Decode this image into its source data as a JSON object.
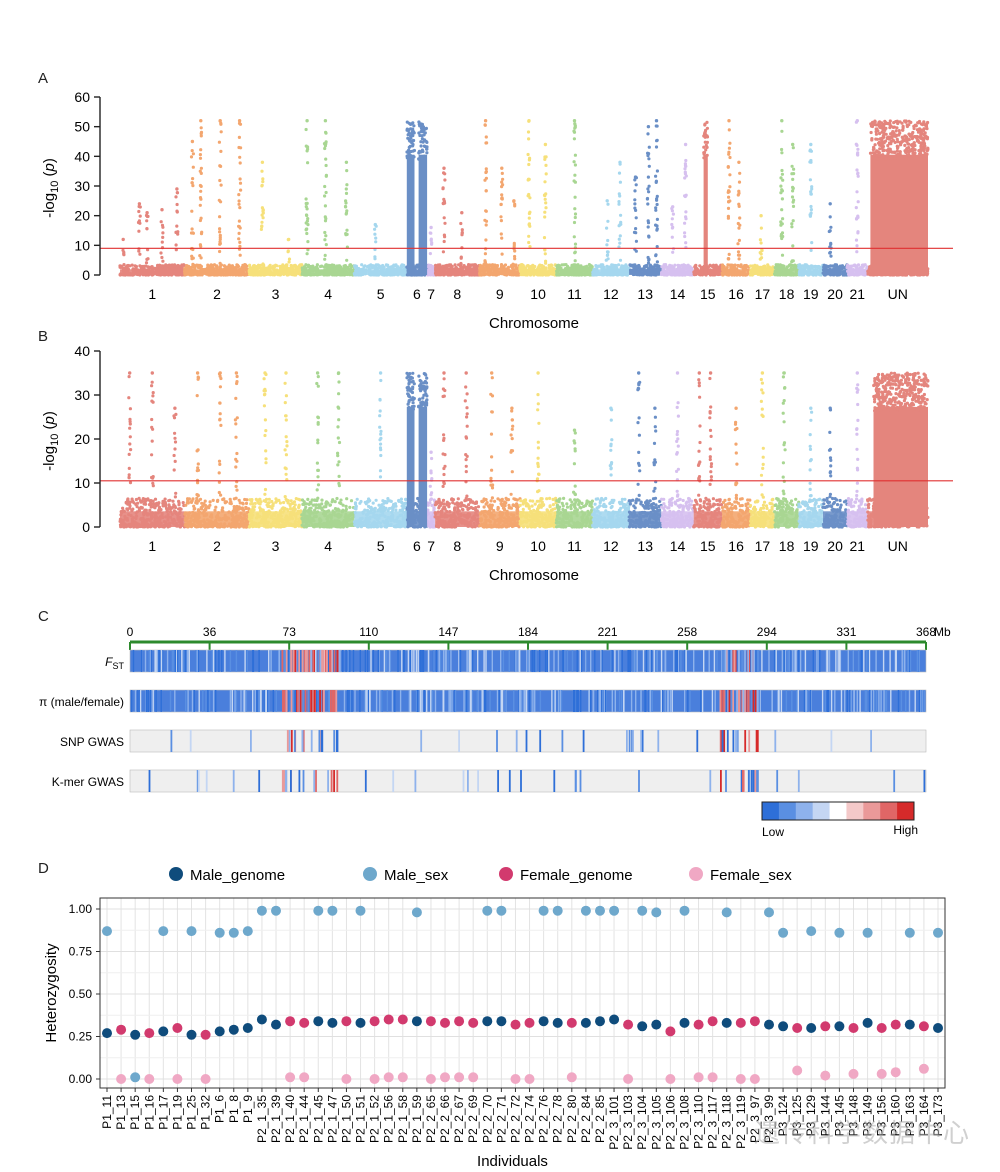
{
  "panels": {
    "a": "A",
    "b": "B",
    "c": "C",
    "d": "D"
  },
  "chart_data": [
    {
      "panel": "A",
      "type": "scatter",
      "subtype": "manhattan",
      "xlabel": "Chromosome",
      "ylabel": "-log10 (p)",
      "ylabel_parts": {
        "pre": "-log",
        "sub": "10",
        "post": " (",
        "italic": "p",
        "end": ")"
      },
      "ylim": [
        0,
        60
      ],
      "yticks": [
        0,
        10,
        20,
        30,
        40,
        50,
        60
      ],
      "threshold": 9,
      "threshold_color": "#e03030",
      "chromosomes": [
        "1",
        "2",
        "3",
        "4",
        "5",
        "6",
        "7",
        "8",
        "9",
        "10",
        "11",
        "12",
        "13",
        "14",
        "15",
        "16",
        "17",
        "18",
        "19",
        "20",
        "21",
        "UN"
      ],
      "chrom_widths": [
        8,
        8,
        6.5,
        6.5,
        6.5,
        2.5,
        1,
        5.5,
        5,
        4.5,
        4.5,
        4.5,
        4,
        4,
        3.5,
        3.5,
        3,
        3,
        3,
        3,
        2.5,
        7.5
      ],
      "chrom_colors": [
        "#e4857d",
        "#f3a66f",
        "#f6e07a",
        "#a8d692",
        "#a5d7ee",
        "#6a8fc6",
        "#d6c0ef",
        "#e4857d",
        "#f3a66f",
        "#f6e07a",
        "#a8d692",
        "#a5d7ee",
        "#6a8fc6",
        "#d6c0ef",
        "#e4857d",
        "#f3a66f",
        "#f6e07a",
        "#a8d692",
        "#a5d7ee",
        "#6a8fc6",
        "#d6c0ef",
        "#e4857d"
      ],
      "baseline_max": 3.5,
      "dense_blocks": [
        {
          "chrom": "6",
          "from": 0.0,
          "to": 0.38,
          "max": 52
        },
        {
          "chrom": "6",
          "from": 0.58,
          "to": 1.0,
          "max": 52
        },
        {
          "chrom": "15",
          "from": 0.35,
          "to": 0.5,
          "max": 52
        },
        {
          "chrom": "UN",
          "from": 0.05,
          "to": 1.0,
          "max": 52
        }
      ],
      "peak_columns": [
        {
          "chrom": "1",
          "pos": 0.05,
          "max": 12
        },
        {
          "chrom": "1",
          "pos": 0.3,
          "max": 24
        },
        {
          "chrom": "1",
          "pos": 0.42,
          "max": 21
        },
        {
          "chrom": "1",
          "pos": 0.65,
          "max": 22
        },
        {
          "chrom": "1",
          "pos": 0.88,
          "max": 29
        },
        {
          "chrom": "2",
          "pos": 0.12,
          "max": 45
        },
        {
          "chrom": "2",
          "pos": 0.25,
          "max": 52
        },
        {
          "chrom": "2",
          "pos": 0.55,
          "max": 52
        },
        {
          "chrom": "2",
          "pos": 0.85,
          "max": 52
        },
        {
          "chrom": "3",
          "pos": 0.25,
          "max": 38
        },
        {
          "chrom": "3",
          "pos": 0.75,
          "max": 12
        },
        {
          "chrom": "4",
          "pos": 0.1,
          "max": 52
        },
        {
          "chrom": "4",
          "pos": 0.45,
          "max": 52
        },
        {
          "chrom": "4",
          "pos": 0.85,
          "max": 38
        },
        {
          "chrom": "5",
          "pos": 0.4,
          "max": 17
        },
        {
          "chrom": "7",
          "pos": 0.5,
          "max": 16
        },
        {
          "chrom": "8",
          "pos": 0.2,
          "max": 36
        },
        {
          "chrom": "8",
          "pos": 0.6,
          "max": 21
        },
        {
          "chrom": "9",
          "pos": 0.15,
          "max": 52
        },
        {
          "chrom": "9",
          "pos": 0.55,
          "max": 36
        },
        {
          "chrom": "9",
          "pos": 0.85,
          "max": 25
        },
        {
          "chrom": "10",
          "pos": 0.25,
          "max": 52
        },
        {
          "chrom": "10",
          "pos": 0.7,
          "max": 44
        },
        {
          "chrom": "11",
          "pos": 0.5,
          "max": 52
        },
        {
          "chrom": "12",
          "pos": 0.4,
          "max": 25
        },
        {
          "chrom": "12",
          "pos": 0.75,
          "max": 38
        },
        {
          "chrom": "13",
          "pos": 0.2,
          "max": 33
        },
        {
          "chrom": "13",
          "pos": 0.6,
          "max": 50
        },
        {
          "chrom": "13",
          "pos": 0.85,
          "max": 52
        },
        {
          "chrom": "14",
          "pos": 0.35,
          "max": 23
        },
        {
          "chrom": "14",
          "pos": 0.75,
          "max": 44
        },
        {
          "chrom": "16",
          "pos": 0.25,
          "max": 52
        },
        {
          "chrom": "16",
          "pos": 0.6,
          "max": 38
        },
        {
          "chrom": "17",
          "pos": 0.45,
          "max": 20
        },
        {
          "chrom": "18",
          "pos": 0.3,
          "max": 52
        },
        {
          "chrom": "18",
          "pos": 0.75,
          "max": 44
        },
        {
          "chrom": "19",
          "pos": 0.5,
          "max": 44
        },
        {
          "chrom": "20",
          "pos": 0.3,
          "max": 24
        },
        {
          "chrom": "21",
          "pos": 0.5,
          "max": 52
        }
      ]
    },
    {
      "panel": "B",
      "type": "scatter",
      "subtype": "manhattan",
      "xlabel": "Chromosome",
      "ylabel": "-log10 (p)",
      "ylim": [
        0,
        40
      ],
      "yticks": [
        0,
        10,
        20,
        30,
        40
      ],
      "threshold": 10.5,
      "threshold_color": "#e03030",
      "baseline_max": 6.5,
      "dense_blocks": [
        {
          "chrom": "6",
          "from": 0.0,
          "to": 0.38,
          "max": 35
        },
        {
          "chrom": "6",
          "from": 0.58,
          "to": 1.0,
          "max": 35
        },
        {
          "chrom": "UN",
          "from": 0.1,
          "to": 1.0,
          "max": 35
        }
      ],
      "peak_columns": [
        {
          "chrom": "1",
          "pos": 0.15,
          "max": 35
        },
        {
          "chrom": "1",
          "pos": 0.5,
          "max": 35
        },
        {
          "chrom": "1",
          "pos": 0.85,
          "max": 27
        },
        {
          "chrom": "2",
          "pos": 0.2,
          "max": 35
        },
        {
          "chrom": "2",
          "pos": 0.55,
          "max": 35
        },
        {
          "chrom": "2",
          "pos": 0.8,
          "max": 35
        },
        {
          "chrom": "3",
          "pos": 0.3,
          "max": 35
        },
        {
          "chrom": "3",
          "pos": 0.7,
          "max": 35
        },
        {
          "chrom": "4",
          "pos": 0.3,
          "max": 35
        },
        {
          "chrom": "4",
          "pos": 0.7,
          "max": 35
        },
        {
          "chrom": "5",
          "pos": 0.5,
          "max": 35
        },
        {
          "chrom": "7",
          "pos": 0.5,
          "max": 17
        },
        {
          "chrom": "8",
          "pos": 0.2,
          "max": 35
        },
        {
          "chrom": "8",
          "pos": 0.7,
          "max": 35
        },
        {
          "chrom": "9",
          "pos": 0.3,
          "max": 35
        },
        {
          "chrom": "9",
          "pos": 0.8,
          "max": 27
        },
        {
          "chrom": "10",
          "pos": 0.5,
          "max": 35
        },
        {
          "chrom": "11",
          "pos": 0.5,
          "max": 22
        },
        {
          "chrom": "12",
          "pos": 0.5,
          "max": 27
        },
        {
          "chrom": "13",
          "pos": 0.3,
          "max": 35
        },
        {
          "chrom": "13",
          "pos": 0.8,
          "max": 27
        },
        {
          "chrom": "14",
          "pos": 0.5,
          "max": 35
        },
        {
          "chrom": "15",
          "pos": 0.2,
          "max": 35
        },
        {
          "chrom": "15",
          "pos": 0.6,
          "max": 35
        },
        {
          "chrom": "16",
          "pos": 0.5,
          "max": 27
        },
        {
          "chrom": "17",
          "pos": 0.5,
          "max": 35
        },
        {
          "chrom": "18",
          "pos": 0.4,
          "max": 35
        },
        {
          "chrom": "19",
          "pos": 0.5,
          "max": 27
        },
        {
          "chrom": "20",
          "pos": 0.3,
          "max": 27
        },
        {
          "chrom": "21",
          "pos": 0.5,
          "max": 35
        }
      ]
    },
    {
      "panel": "C",
      "type": "heatmap",
      "unit": "Mb",
      "xticks": [
        "0",
        "36",
        "73",
        "110",
        "147",
        "184",
        "221",
        "258",
        "294",
        "331",
        "368"
      ],
      "tracks": [
        {
          "label_main": "F",
          "label_sub": "ST",
          "label": "FST",
          "kind": "dense"
        },
        {
          "label": "π (male/female)",
          "kind": "dense"
        },
        {
          "label": "SNP GWAS",
          "kind": "sparse"
        },
        {
          "label": "K-mer GWAS",
          "kind": "sparse"
        }
      ],
      "hot_regions": [
        [
          0.19,
          0.26
        ],
        [
          0.74,
          0.79
        ]
      ],
      "legend_low": "Low",
      "legend_high": "High",
      "scale_colors": [
        "#2e6fd8",
        "#5a8fe2",
        "#8eb2ec",
        "#c4d6f3",
        "#ffffff",
        "#f4c9c9",
        "#ea9999",
        "#e06666",
        "#d62a2a"
      ]
    },
    {
      "panel": "D",
      "type": "scatter",
      "xlabel": "Individuals",
      "ylabel": "Heterozygosity",
      "ylim": [
        0,
        1
      ],
      "yticks": [
        "0.00",
        "0.25",
        "0.50",
        "0.75",
        "1.00"
      ],
      "legend": [
        {
          "name": "Male_genome",
          "color": "#0f4c7c"
        },
        {
          "name": "Male_sex",
          "color": "#6ea8cc"
        },
        {
          "name": "Female_genome",
          "color": "#d23a6e"
        },
        {
          "name": "Female_sex",
          "color": "#f0a8c4"
        }
      ],
      "individuals": [
        {
          "id": "P1_11",
          "sex": "M",
          "genome": 0.27,
          "sexval": 0.87
        },
        {
          "id": "P1_13",
          "sex": "F",
          "genome": 0.29,
          "sexval": 0.0
        },
        {
          "id": "P1_15",
          "sex": "M",
          "genome": 0.26,
          "sexval": 0.01
        },
        {
          "id": "P1_16",
          "sex": "F",
          "genome": 0.27,
          "sexval": 0.0
        },
        {
          "id": "P1_17",
          "sex": "M",
          "genome": 0.28,
          "sexval": 0.87
        },
        {
          "id": "P1_19",
          "sex": "F",
          "genome": 0.3,
          "sexval": 0.0
        },
        {
          "id": "P1_25",
          "sex": "M",
          "genome": 0.26,
          "sexval": 0.87
        },
        {
          "id": "P1_32",
          "sex": "F",
          "genome": 0.26,
          "sexval": 0.0
        },
        {
          "id": "P1_6",
          "sex": "M",
          "genome": 0.28,
          "sexval": 0.86
        },
        {
          "id": "P1_8",
          "sex": "M",
          "genome": 0.29,
          "sexval": 0.86
        },
        {
          "id": "P1_9",
          "sex": "M",
          "genome": 0.3,
          "sexval": 0.87
        },
        {
          "id": "P2_1_35",
          "sex": "M",
          "genome": 0.35,
          "sexval": 0.99
        },
        {
          "id": "P2_1_39",
          "sex": "M",
          "genome": 0.32,
          "sexval": 0.99
        },
        {
          "id": "P2_1_40",
          "sex": "F",
          "genome": 0.34,
          "sexval": 0.01
        },
        {
          "id": "P2_1_44",
          "sex": "F",
          "genome": 0.33,
          "sexval": 0.01
        },
        {
          "id": "P2_1_45",
          "sex": "M",
          "genome": 0.34,
          "sexval": 0.99
        },
        {
          "id": "P2_1_47",
          "sex": "M",
          "genome": 0.33,
          "sexval": 0.99
        },
        {
          "id": "P2_1_50",
          "sex": "F",
          "genome": 0.34,
          "sexval": 0.0
        },
        {
          "id": "P2_1_51",
          "sex": "M",
          "genome": 0.33,
          "sexval": 0.99
        },
        {
          "id": "P2_1_52",
          "sex": "F",
          "genome": 0.34,
          "sexval": 0.0
        },
        {
          "id": "P2_1_56",
          "sex": "F",
          "genome": 0.35,
          "sexval": 0.01
        },
        {
          "id": "P2_1_58",
          "sex": "F",
          "genome": 0.35,
          "sexval": 0.01
        },
        {
          "id": "P2_1_59",
          "sex": "M",
          "genome": 0.34,
          "sexval": 0.98
        },
        {
          "id": "P2_2_65",
          "sex": "F",
          "genome": 0.34,
          "sexval": 0.0
        },
        {
          "id": "P2_2_66",
          "sex": "F",
          "genome": 0.33,
          "sexval": 0.01
        },
        {
          "id": "P2_2_67",
          "sex": "F",
          "genome": 0.34,
          "sexval": 0.01
        },
        {
          "id": "P2_2_69",
          "sex": "F",
          "genome": 0.33,
          "sexval": 0.01
        },
        {
          "id": "P2_2_70",
          "sex": "M",
          "genome": 0.34,
          "sexval": 0.99
        },
        {
          "id": "P2_2_71",
          "sex": "M",
          "genome": 0.34,
          "sexval": 0.99
        },
        {
          "id": "P2_2_72",
          "sex": "F",
          "genome": 0.32,
          "sexval": 0.0
        },
        {
          "id": "P2_2_74",
          "sex": "F",
          "genome": 0.33,
          "sexval": 0.0
        },
        {
          "id": "P2_2_76",
          "sex": "M",
          "genome": 0.34,
          "sexval": 0.99
        },
        {
          "id": "P2_2_78",
          "sex": "M",
          "genome": 0.33,
          "sexval": 0.99
        },
        {
          "id": "P2_2_80",
          "sex": "F",
          "genome": 0.33,
          "sexval": 0.01
        },
        {
          "id": "P2_2_84",
          "sex": "M",
          "genome": 0.33,
          "sexval": 0.99
        },
        {
          "id": "P2_2_85",
          "sex": "M",
          "genome": 0.34,
          "sexval": 0.99
        },
        {
          "id": "P2_3_101",
          "sex": "M",
          "genome": 0.35,
          "sexval": 0.99
        },
        {
          "id": "P2_3_103",
          "sex": "F",
          "genome": 0.32,
          "sexval": 0.0
        },
        {
          "id": "P2_3_104",
          "sex": "M",
          "genome": 0.31,
          "sexval": 0.99
        },
        {
          "id": "P2_3_105",
          "sex": "M",
          "genome": 0.32,
          "sexval": 0.98
        },
        {
          "id": "P2_3_106",
          "sex": "F",
          "genome": 0.28,
          "sexval": 0.0
        },
        {
          "id": "P2_3_108",
          "sex": "M",
          "genome": 0.33,
          "sexval": 0.99
        },
        {
          "id": "P2_3_110",
          "sex": "F",
          "genome": 0.32,
          "sexval": 0.01
        },
        {
          "id": "P2_3_117",
          "sex": "F",
          "genome": 0.34,
          "sexval": 0.01
        },
        {
          "id": "P2_3_118",
          "sex": "M",
          "genome": 0.33,
          "sexval": 0.98
        },
        {
          "id": "P2_3_119",
          "sex": "F",
          "genome": 0.33,
          "sexval": 0.0
        },
        {
          "id": "P2_3_97",
          "sex": "F",
          "genome": 0.34,
          "sexval": 0.0
        },
        {
          "id": "P2_3_99",
          "sex": "M",
          "genome": 0.32,
          "sexval": 0.98
        },
        {
          "id": "P3_124",
          "sex": "M",
          "genome": 0.31,
          "sexval": 0.86
        },
        {
          "id": "P3_125",
          "sex": "F",
          "genome": 0.3,
          "sexval": 0.05
        },
        {
          "id": "P3_129",
          "sex": "M",
          "genome": 0.3,
          "sexval": 0.87
        },
        {
          "id": "P3_144",
          "sex": "F",
          "genome": 0.31,
          "sexval": 0.02
        },
        {
          "id": "P3_145",
          "sex": "M",
          "genome": 0.31,
          "sexval": 0.86
        },
        {
          "id": "P3_148",
          "sex": "F",
          "genome": 0.3,
          "sexval": 0.03
        },
        {
          "id": "P3_149",
          "sex": "M",
          "genome": 0.33,
          "sexval": 0.86
        },
        {
          "id": "P3_156",
          "sex": "F",
          "genome": 0.3,
          "sexval": 0.03
        },
        {
          "id": "P3_160",
          "sex": "F",
          "genome": 0.32,
          "sexval": 0.04
        },
        {
          "id": "P3_163",
          "sex": "M",
          "genome": 0.32,
          "sexval": 0.86
        },
        {
          "id": "P3_164",
          "sex": "F",
          "genome": 0.31,
          "sexval": 0.06
        },
        {
          "id": "P3_173",
          "sex": "M",
          "genome": 0.3,
          "sexval": 0.86
        }
      ]
    }
  ],
  "watermark": "遗传科学数据中心"
}
